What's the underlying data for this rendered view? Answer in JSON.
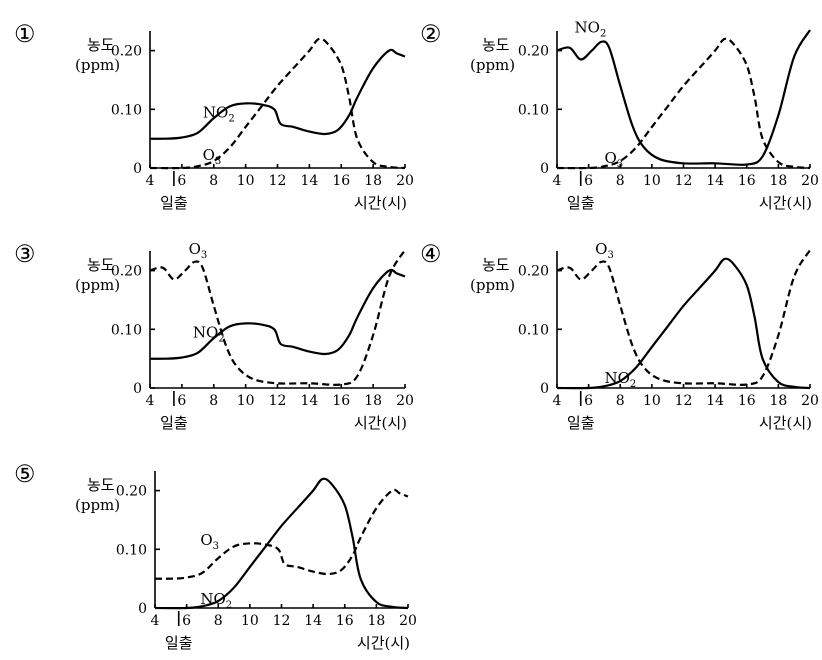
{
  "chart_data": [
    {
      "type": "line",
      "panel_number": "①",
      "ylabel_line1": "농도",
      "ylabel_line2": "(ppm)",
      "x_ticks": [
        "4",
        "6",
        "8",
        "10",
        "12",
        "14",
        "16",
        "18",
        "20"
      ],
      "y_ticks": [
        "0",
        "0.10",
        "0.20"
      ],
      "sunrise_label": "일출",
      "xlabel": "시간(시)",
      "xlim": [
        4,
        20
      ],
      "ylim": [
        0,
        0.23
      ],
      "series": [
        {
          "name": "NO2",
          "style": "solid",
          "x": [
            4,
            5,
            6,
            7,
            8,
            9,
            10,
            11,
            11.8,
            12.2,
            13,
            14,
            15,
            15.8,
            16.5,
            17,
            18,
            19,
            19.5,
            20
          ],
          "y": [
            0.05,
            0.05,
            0.052,
            0.06,
            0.085,
            0.105,
            0.11,
            0.108,
            0.1,
            0.075,
            0.07,
            0.062,
            0.058,
            0.065,
            0.09,
            0.12,
            0.17,
            0.2,
            0.195,
            0.19
          ]
        },
        {
          "name": "O3",
          "style": "dashed",
          "x": [
            4,
            6,
            7,
            8,
            9,
            10,
            11,
            12,
            13,
            14,
            14.6,
            15.2,
            16,
            16.5,
            17,
            18,
            19,
            20
          ],
          "y": [
            0,
            0,
            0.003,
            0.012,
            0.035,
            0.07,
            0.105,
            0.14,
            0.17,
            0.2,
            0.22,
            0.21,
            0.175,
            0.12,
            0.05,
            0.01,
            0.002,
            0
          ]
        }
      ],
      "annotations": [
        {
          "base": "NO",
          "sub": "2",
          "series": "NO2"
        },
        {
          "base": "O",
          "sub": "3",
          "series": "O3"
        }
      ]
    },
    {
      "type": "line",
      "panel_number": "②",
      "ylabel_line1": "농도",
      "ylabel_line2": "(ppm)",
      "x_ticks": [
        "4",
        "6",
        "8",
        "10",
        "12",
        "14",
        "16",
        "18",
        "20"
      ],
      "y_ticks": [
        "0",
        "0.10",
        "0.20"
      ],
      "sunrise_label": "일출",
      "xlabel": "시간(시)",
      "xlim": [
        4,
        20
      ],
      "ylim": [
        0,
        0.23
      ],
      "series": [
        {
          "name": "NO2",
          "style": "solid",
          "x": [
            4,
            4.8,
            5.5,
            6.2,
            6.8,
            7.3,
            8,
            8.8,
            9.5,
            10.5,
            12,
            14,
            16,
            17,
            18,
            19,
            20
          ],
          "y": [
            0.2,
            0.205,
            0.185,
            0.2,
            0.215,
            0.205,
            0.14,
            0.07,
            0.035,
            0.015,
            0.008,
            0.008,
            0.006,
            0.02,
            0.09,
            0.19,
            0.235
          ]
        },
        {
          "name": "O3",
          "style": "dashed",
          "x": [
            4,
            6,
            7,
            8,
            9,
            10,
            11,
            12,
            13,
            14,
            14.6,
            15.2,
            16,
            16.5,
            17,
            18,
            19,
            20
          ],
          "y": [
            0,
            0,
            0.003,
            0.012,
            0.035,
            0.07,
            0.105,
            0.14,
            0.17,
            0.2,
            0.22,
            0.21,
            0.175,
            0.12,
            0.05,
            0.01,
            0.002,
            0
          ]
        }
      ],
      "annotations": [
        {
          "base": "NO",
          "sub": "2",
          "series": "NO2"
        },
        {
          "base": "O",
          "sub": "3",
          "series": "O3"
        }
      ]
    },
    {
      "type": "line",
      "panel_number": "③",
      "ylabel_line1": "농도",
      "ylabel_line2": "(ppm)",
      "x_ticks": [
        "4",
        "6",
        "8",
        "10",
        "12",
        "14",
        "16",
        "18",
        "20"
      ],
      "y_ticks": [
        "0",
        "0.10",
        "0.20"
      ],
      "sunrise_label": "일출",
      "xlabel": "시간(시)",
      "xlim": [
        4,
        20
      ],
      "ylim": [
        0,
        0.23
      ],
      "series": [
        {
          "name": "NO2",
          "style": "solid",
          "x": [
            4,
            5,
            6,
            7,
            8,
            9,
            10,
            11,
            11.8,
            12.2,
            13,
            14,
            15,
            15.8,
            16.5,
            17,
            18,
            19,
            19.5,
            20
          ],
          "y": [
            0.05,
            0.05,
            0.052,
            0.06,
            0.085,
            0.105,
            0.11,
            0.108,
            0.1,
            0.075,
            0.07,
            0.062,
            0.058,
            0.065,
            0.09,
            0.12,
            0.17,
            0.2,
            0.195,
            0.19
          ]
        },
        {
          "name": "O3",
          "style": "dashed",
          "x": [
            4,
            4.8,
            5.5,
            6.2,
            6.8,
            7.3,
            8,
            8.8,
            9.5,
            10.5,
            12,
            14,
            16,
            17,
            18,
            19,
            20
          ],
          "y": [
            0.2,
            0.205,
            0.185,
            0.2,
            0.215,
            0.205,
            0.14,
            0.07,
            0.035,
            0.015,
            0.008,
            0.008,
            0.006,
            0.02,
            0.09,
            0.19,
            0.235
          ]
        }
      ],
      "annotations": [
        {
          "base": "NO",
          "sub": "2",
          "series": "NO2"
        },
        {
          "base": "O",
          "sub": "3",
          "series": "O3"
        }
      ]
    },
    {
      "type": "line",
      "panel_number": "④",
      "ylabel_line1": "농도",
      "ylabel_line2": "(ppm)",
      "x_ticks": [
        "4",
        "6",
        "8",
        "10",
        "12",
        "14",
        "16",
        "18",
        "20"
      ],
      "y_ticks": [
        "0",
        "0.10",
        "0.20"
      ],
      "sunrise_label": "일출",
      "xlabel": "시간(시)",
      "xlim": [
        4,
        20
      ],
      "ylim": [
        0,
        0.23
      ],
      "series": [
        {
          "name": "NO2",
          "style": "solid",
          "x": [
            4,
            6,
            7,
            8,
            9,
            10,
            11,
            12,
            13,
            14,
            14.6,
            15.2,
            16,
            16.5,
            17,
            18,
            19,
            20
          ],
          "y": [
            0,
            0,
            0.003,
            0.012,
            0.035,
            0.07,
            0.105,
            0.14,
            0.17,
            0.2,
            0.22,
            0.21,
            0.175,
            0.12,
            0.05,
            0.01,
            0.002,
            0
          ]
        },
        {
          "name": "O3",
          "style": "dashed",
          "x": [
            4,
            4.8,
            5.5,
            6.2,
            6.8,
            7.3,
            8,
            8.8,
            9.5,
            10.5,
            12,
            14,
            16,
            17,
            18,
            19,
            20
          ],
          "y": [
            0.2,
            0.205,
            0.185,
            0.2,
            0.215,
            0.205,
            0.14,
            0.07,
            0.035,
            0.015,
            0.008,
            0.008,
            0.006,
            0.02,
            0.09,
            0.19,
            0.235
          ]
        }
      ],
      "annotations": [
        {
          "base": "NO",
          "sub": "2",
          "series": "NO2"
        },
        {
          "base": "O",
          "sub": "3",
          "series": "O3"
        }
      ]
    },
    {
      "type": "line",
      "panel_number": "⑤",
      "ylabel_line1": "농도",
      "ylabel_line2": "(ppm)",
      "x_ticks": [
        "4",
        "6",
        "8",
        "10",
        "12",
        "14",
        "16",
        "18",
        "20"
      ],
      "y_ticks": [
        "0",
        "0.10",
        "0.20"
      ],
      "sunrise_label": "일출",
      "xlabel": "시간(시)",
      "xlim": [
        4,
        20
      ],
      "ylim": [
        0,
        0.23
      ],
      "series": [
        {
          "name": "NO2",
          "style": "solid",
          "x": [
            4,
            6,
            7,
            8,
            9,
            10,
            11,
            12,
            13,
            14,
            14.6,
            15.2,
            16,
            16.5,
            17,
            18,
            19,
            20
          ],
          "y": [
            0,
            0,
            0.003,
            0.012,
            0.035,
            0.07,
            0.105,
            0.14,
            0.17,
            0.2,
            0.22,
            0.21,
            0.175,
            0.12,
            0.05,
            0.01,
            0.002,
            0
          ]
        },
        {
          "name": "O3",
          "style": "dashed",
          "x": [
            4,
            5,
            6,
            7,
            8,
            9,
            10,
            11,
            11.8,
            12.2,
            13,
            14,
            15,
            15.8,
            16.5,
            17,
            18,
            19,
            19.5,
            20
          ],
          "y": [
            0.05,
            0.05,
            0.052,
            0.06,
            0.085,
            0.105,
            0.11,
            0.108,
            0.1,
            0.075,
            0.07,
            0.062,
            0.058,
            0.065,
            0.09,
            0.12,
            0.17,
            0.2,
            0.195,
            0.19
          ]
        }
      ],
      "annotations": [
        {
          "base": "NO",
          "sub": "2",
          "series": "NO2"
        },
        {
          "base": "O",
          "sub": "3",
          "series": "O3"
        }
      ]
    }
  ]
}
